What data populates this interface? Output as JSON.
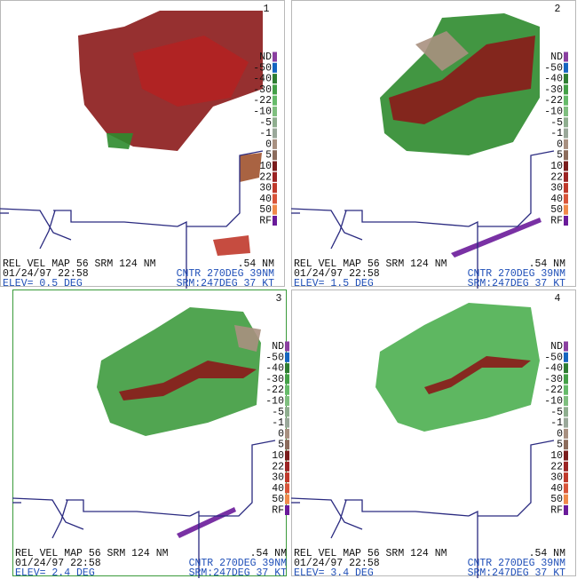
{
  "legend": [
    {
      "label": "ND",
      "color": "#8a3fa0"
    },
    {
      "label": "-50",
      "color": "#1565c0"
    },
    {
      "label": "-40",
      "color": "#2e7d32"
    },
    {
      "label": "-30",
      "color": "#43a047"
    },
    {
      "label": "-22",
      "color": "#66bb6a"
    },
    {
      "label": "-10",
      "color": "#7fbf7f"
    },
    {
      "label": "-5",
      "color": "#8fae8f"
    },
    {
      "label": "-1",
      "color": "#9aa89a"
    },
    {
      "label": "0",
      "color": "#a89080"
    },
    {
      "label": "5",
      "color": "#8c6c5c"
    },
    {
      "label": "10",
      "color": "#7a1c1c"
    },
    {
      "label": "22",
      "color": "#9c2424"
    },
    {
      "label": "30",
      "color": "#c0392b"
    },
    {
      "label": "40",
      "color": "#d9553a"
    },
    {
      "label": "50",
      "color": "#f08a4b"
    },
    {
      "label": "RF",
      "color": "#6a1b9a"
    }
  ],
  "panels": [
    {
      "number": "1",
      "product": "REL VEL MAP 56 SRM 124 NM",
      "resolution": ".54 NM",
      "datetime": "01/24/97 22:58",
      "center": "CNTR 270DEG  39NM",
      "elevation": "ELEV=  0.5 DEG",
      "storm_motion": "SRM:247DEG  37 KT"
    },
    {
      "number": "2",
      "product": "REL VEL MAP 56 SRM 124 NM",
      "resolution": ".54 NM",
      "datetime": "01/24/97 22:58",
      "center": "CNTR 270DEG  39NM",
      "elevation": "ELEV=  1.5 DEG",
      "storm_motion": "SRM:247DEG  37 KT"
    },
    {
      "number": "3",
      "product": "REL VEL MAP 56 SRM 124 NM",
      "resolution": ".54 NM",
      "datetime": "01/24/97 22:58",
      "center": "CNTR 270DEG  39NM",
      "elevation": "ELEV=  2.4 DEG",
      "storm_motion": "SRM:247DEG  37 KT"
    },
    {
      "number": "4",
      "product": "REL VEL MAP 56 SRM 124 NM",
      "resolution": ".54 NM",
      "datetime": "01/24/97 22:58",
      "center": "CNTR 270DEG  39NM",
      "elevation": "ELEV=  3.4 DEG",
      "storm_motion": "SRM:247DEG  37 KT"
    }
  ]
}
